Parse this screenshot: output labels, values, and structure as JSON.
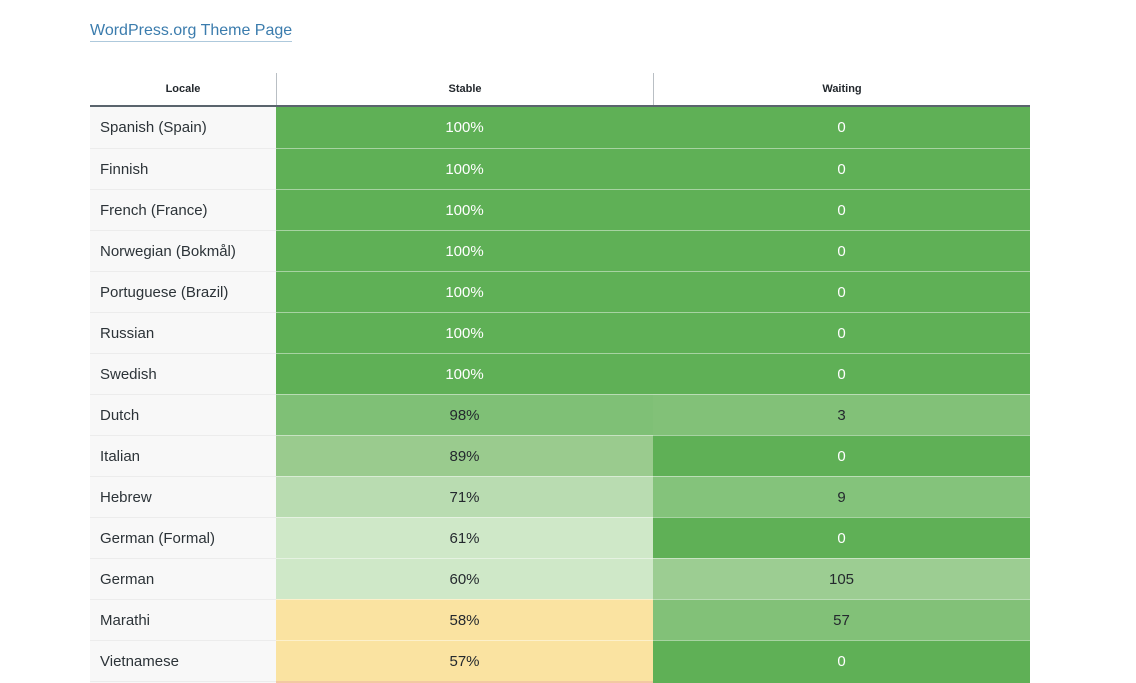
{
  "page": {
    "title_link": "WordPress.org Theme Page"
  },
  "colors": {
    "link_blue": "#3b7cad",
    "header_border": "#5a646d",
    "locale_cell_bg": "#f8f8f8",
    "green_full": "#5fb056",
    "green_98": "#7fc076",
    "green_89": "#9acb8e",
    "green_71": "#b9dcb1",
    "green_60s": "#cfe8c8",
    "yellow_50s": "#fae3a1",
    "partial_salmon": "#f3c8a2"
  },
  "table": {
    "columns": [
      "Locale",
      "Stable",
      "Waiting"
    ],
    "rows": [
      {
        "locale": "Spanish (Spain)",
        "stable": "100%",
        "waiting": "0",
        "stable_bg": "#5fb056",
        "waiting_bg": "#5fb056",
        "stable_fg": "#ffffff",
        "waiting_fg": "#ffffff"
      },
      {
        "locale": "Finnish",
        "stable": "100%",
        "waiting": "0",
        "stable_bg": "#5fb056",
        "waiting_bg": "#5fb056",
        "stable_fg": "#ffffff",
        "waiting_fg": "#ffffff"
      },
      {
        "locale": "French (France)",
        "stable": "100%",
        "waiting": "0",
        "stable_bg": "#5fb056",
        "waiting_bg": "#5fb056",
        "stable_fg": "#ffffff",
        "waiting_fg": "#ffffff"
      },
      {
        "locale": "Norwegian (Bokmål)",
        "stable": "100%",
        "waiting": "0",
        "stable_bg": "#5fb056",
        "waiting_bg": "#5fb056",
        "stable_fg": "#ffffff",
        "waiting_fg": "#ffffff"
      },
      {
        "locale": "Portuguese (Brazil)",
        "stable": "100%",
        "waiting": "0",
        "stable_bg": "#5fb056",
        "waiting_bg": "#5fb056",
        "stable_fg": "#ffffff",
        "waiting_fg": "#ffffff"
      },
      {
        "locale": "Russian",
        "stable": "100%",
        "waiting": "0",
        "stable_bg": "#5fb056",
        "waiting_bg": "#5fb056",
        "stable_fg": "#ffffff",
        "waiting_fg": "#ffffff"
      },
      {
        "locale": "Swedish",
        "stable": "100%",
        "waiting": "0",
        "stable_bg": "#5fb056",
        "waiting_bg": "#5fb056",
        "stable_fg": "#ffffff",
        "waiting_fg": "#ffffff"
      },
      {
        "locale": "Dutch",
        "stable": "98%",
        "waiting": "3",
        "stable_bg": "#7fc076",
        "waiting_bg": "#82c178",
        "stable_fg": "#24292e",
        "waiting_fg": "#24292e"
      },
      {
        "locale": "Italian",
        "stable": "89%",
        "waiting": "0",
        "stable_bg": "#9acb8e",
        "waiting_bg": "#5fb056",
        "stable_fg": "#24292e",
        "waiting_fg": "#ffffff"
      },
      {
        "locale": "Hebrew",
        "stable": "71%",
        "waiting": "9",
        "stable_bg": "#b9dcb1",
        "waiting_bg": "#84c37b",
        "stable_fg": "#24292e",
        "waiting_fg": "#24292e"
      },
      {
        "locale": "German (Formal)",
        "stable": "61%",
        "waiting": "0",
        "stable_bg": "#cfe8c8",
        "waiting_bg": "#5fb056",
        "stable_fg": "#24292e",
        "waiting_fg": "#ffffff"
      },
      {
        "locale": "German",
        "stable": "60%",
        "waiting": "105",
        "stable_bg": "#cfe8c8",
        "waiting_bg": "#9ccd92",
        "stable_fg": "#24292e",
        "waiting_fg": "#24292e"
      },
      {
        "locale": "Marathi",
        "stable": "58%",
        "waiting": "57",
        "stable_bg": "#fae3a1",
        "waiting_bg": "#82c178",
        "stable_fg": "#24292e",
        "waiting_fg": "#24292e"
      },
      {
        "locale": "Vietnamese",
        "stable": "57%",
        "waiting": "0",
        "stable_bg": "#fae3a1",
        "waiting_bg": "#5fb056",
        "stable_fg": "#24292e",
        "waiting_fg": "#ffffff"
      }
    ],
    "partial_row": {
      "stable_bg": "#f3c8a2",
      "waiting_bg": "#5fb056"
    }
  }
}
